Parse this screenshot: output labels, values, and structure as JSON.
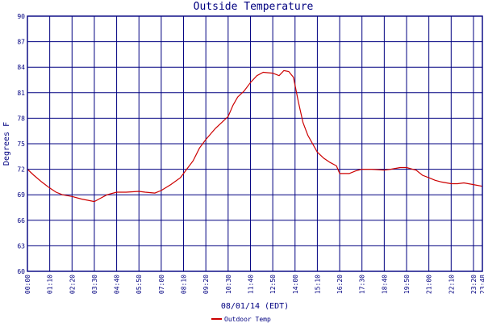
{
  "chart_data": {
    "type": "line",
    "title": "Outside Temperature",
    "xlabel": "08/01/14 (EDT)",
    "ylabel": "Degrees F",
    "ylim": [
      60,
      90
    ],
    "yticks": [
      60,
      63,
      66,
      69,
      72,
      75,
      78,
      81,
      84,
      87,
      90
    ],
    "xlim": [
      "00:00",
      "23:48"
    ],
    "xtick_labels": [
      "00:00",
      "01:10",
      "02:20",
      "03:30",
      "04:40",
      "05:50",
      "07:00",
      "08:10",
      "09:20",
      "10:30",
      "11:40",
      "12:50",
      "14:00",
      "15:10",
      "16:20",
      "17:30",
      "18:40",
      "19:50",
      "21:00",
      "22:10",
      "23:20",
      "23:48"
    ],
    "grid": true,
    "legend_position": "bottom-left",
    "colors": {
      "axis": "#000080",
      "grid": "#000080",
      "series": "#cc0000",
      "background": "#ffffff"
    },
    "series": [
      {
        "name": "Outdoor Temp",
        "points": [
          [
            "00:00",
            72.0
          ],
          [
            "00:20",
            71.3
          ],
          [
            "00:45",
            70.5
          ],
          [
            "01:10",
            69.8
          ],
          [
            "01:30",
            69.3
          ],
          [
            "01:50",
            69.0
          ],
          [
            "02:20",
            68.8
          ],
          [
            "02:50",
            68.5
          ],
          [
            "03:30",
            68.2
          ],
          [
            "03:50",
            68.6
          ],
          [
            "04:10",
            69.0
          ],
          [
            "04:40",
            69.3
          ],
          [
            "05:10",
            69.3
          ],
          [
            "05:50",
            69.4
          ],
          [
            "06:10",
            69.3
          ],
          [
            "06:40",
            69.2
          ],
          [
            "07:00",
            69.5
          ],
          [
            "07:30",
            70.2
          ],
          [
            "08:00",
            71.0
          ],
          [
            "08:10",
            71.5
          ],
          [
            "08:40",
            73.0
          ],
          [
            "09:00",
            74.5
          ],
          [
            "09:20",
            75.5
          ],
          [
            "09:50",
            76.8
          ],
          [
            "10:10",
            77.5
          ],
          [
            "10:30",
            78.2
          ],
          [
            "10:45",
            79.5
          ],
          [
            "11:00",
            80.5
          ],
          [
            "11:20",
            81.2
          ],
          [
            "11:40",
            82.2
          ],
          [
            "12:00",
            83.0
          ],
          [
            "12:20",
            83.4
          ],
          [
            "12:50",
            83.3
          ],
          [
            "13:10",
            83.0
          ],
          [
            "13:25",
            83.6
          ],
          [
            "13:40",
            83.5
          ],
          [
            "13:55",
            82.8
          ],
          [
            "14:10",
            80.0
          ],
          [
            "14:25",
            77.5
          ],
          [
            "14:40",
            76.0
          ],
          [
            "15:10",
            74.0
          ],
          [
            "15:30",
            73.3
          ],
          [
            "15:50",
            72.8
          ],
          [
            "16:10",
            72.4
          ],
          [
            "16:20",
            71.5
          ],
          [
            "16:50",
            71.5
          ],
          [
            "17:10",
            71.8
          ],
          [
            "17:30",
            72.0
          ],
          [
            "18:00",
            72.0
          ],
          [
            "18:40",
            71.9
          ],
          [
            "19:00",
            72.0
          ],
          [
            "19:30",
            72.2
          ],
          [
            "19:50",
            72.2
          ],
          [
            "20:20",
            71.9
          ],
          [
            "20:40",
            71.3
          ],
          [
            "21:00",
            71.0
          ],
          [
            "21:20",
            70.7
          ],
          [
            "21:40",
            70.5
          ],
          [
            "22:10",
            70.3
          ],
          [
            "22:30",
            70.3
          ],
          [
            "22:50",
            70.4
          ],
          [
            "23:20",
            70.2
          ],
          [
            "23:48",
            70.0
          ]
        ]
      }
    ]
  }
}
